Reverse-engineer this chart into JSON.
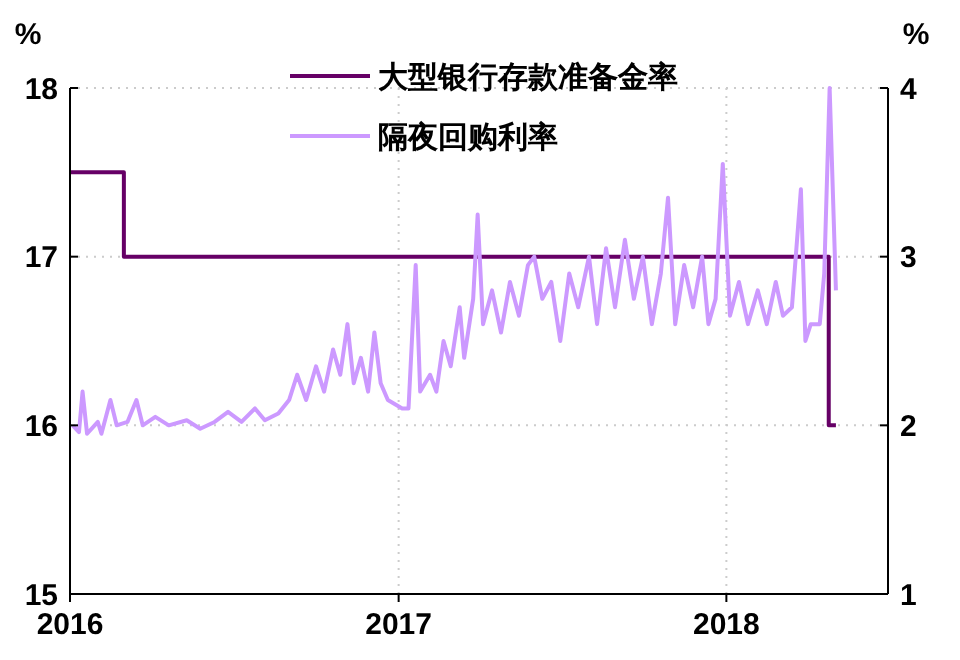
{
  "chart_data": {
    "type": "line",
    "ylabel": "%",
    "y2label": "%",
    "xlim": [
      "2016-01-01",
      "2018-06-30"
    ],
    "xticks": [
      "2016",
      "2017",
      "2018"
    ],
    "ylim": [
      15,
      18
    ],
    "yticks": [
      15,
      16,
      17,
      18
    ],
    "y2lim": [
      1,
      4
    ],
    "y2ticks": [
      1,
      2,
      3,
      4
    ],
    "grid": true,
    "legend": "top",
    "line_style": "solid",
    "marker": "none",
    "series": [
      {
        "name": "大型银行存款准备金率",
        "type": "step",
        "color": "#660066",
        "x": [
          "2016-01-01",
          "2016-03-01",
          "2018-04-25",
          "2018-05-03"
        ],
        "values": [
          17.5,
          17,
          16,
          16
        ]
      },
      {
        "name": "隔夜回购利率",
        "type": "line",
        "axis": "y2",
        "color": "#cc99ff",
        "x": [
          "2016-01-04",
          "2016-01-11",
          "2016-01-15",
          "2016-01-20",
          "2016-02-01",
          "2016-02-05",
          "2016-02-15",
          "2016-02-22",
          "2016-03-05",
          "2016-03-15",
          "2016-03-22",
          "2016-04-05",
          "2016-04-20",
          "2016-05-10",
          "2016-05-25",
          "2016-06-10",
          "2016-06-25",
          "2016-07-10",
          "2016-07-25",
          "2016-08-05",
          "2016-08-20",
          "2016-09-01",
          "2016-09-10",
          "2016-09-20",
          "2016-10-01",
          "2016-10-10",
          "2016-10-20",
          "2016-10-28",
          "2016-11-05",
          "2016-11-12",
          "2016-11-20",
          "2016-11-28",
          "2016-12-05",
          "2016-12-12",
          "2016-12-20",
          "2017-01-05",
          "2017-01-12",
          "2017-01-20",
          "2017-01-25",
          "2017-02-05",
          "2017-02-12",
          "2017-02-20",
          "2017-02-28",
          "2017-03-10",
          "2017-03-15",
          "2017-03-25",
          "2017-03-30",
          "2017-04-05",
          "2017-04-15",
          "2017-04-25",
          "2017-05-05",
          "2017-05-15",
          "2017-05-25",
          "2017-06-01",
          "2017-06-10",
          "2017-06-20",
          "2017-06-30",
          "2017-07-10",
          "2017-07-20",
          "2017-08-01",
          "2017-08-10",
          "2017-08-20",
          "2017-08-30",
          "2017-09-10",
          "2017-09-20",
          "2017-09-30",
          "2017-10-10",
          "2017-10-20",
          "2017-10-28",
          "2017-11-05",
          "2017-11-15",
          "2017-11-25",
          "2017-12-05",
          "2017-12-12",
          "2017-12-20",
          "2017-12-28",
          "2018-01-05",
          "2018-01-15",
          "2018-01-25",
          "2018-02-05",
          "2018-02-15",
          "2018-02-25",
          "2018-03-05",
          "2018-03-15",
          "2018-03-25",
          "2018-03-30",
          "2018-04-05",
          "2018-04-15",
          "2018-04-20",
          "2018-04-26",
          "2018-05-03"
        ],
        "values": [
          2.0,
          1.96,
          2.2,
          1.95,
          2.02,
          1.95,
          2.15,
          2.0,
          2.02,
          2.15,
          2.0,
          2.05,
          2.0,
          2.03,
          1.98,
          2.02,
          2.08,
          2.02,
          2.1,
          2.03,
          2.07,
          2.15,
          2.3,
          2.15,
          2.35,
          2.2,
          2.45,
          2.3,
          2.6,
          2.25,
          2.4,
          2.2,
          2.55,
          2.25,
          2.15,
          2.1,
          2.1,
          2.95,
          2.2,
          2.3,
          2.2,
          2.5,
          2.35,
          2.7,
          2.4,
          2.75,
          3.25,
          2.6,
          2.8,
          2.55,
          2.85,
          2.65,
          2.95,
          3.0,
          2.75,
          2.85,
          2.5,
          2.9,
          2.7,
          3.0,
          2.6,
          3.05,
          2.7,
          3.1,
          2.75,
          3.0,
          2.6,
          2.9,
          3.35,
          2.6,
          2.95,
          2.7,
          3.0,
          2.6,
          2.75,
          3.55,
          2.65,
          2.85,
          2.6,
          2.8,
          2.6,
          2.85,
          2.65,
          2.7,
          3.4,
          2.5,
          2.6,
          2.6,
          2.9,
          4.0,
          2.8
        ]
      }
    ]
  }
}
